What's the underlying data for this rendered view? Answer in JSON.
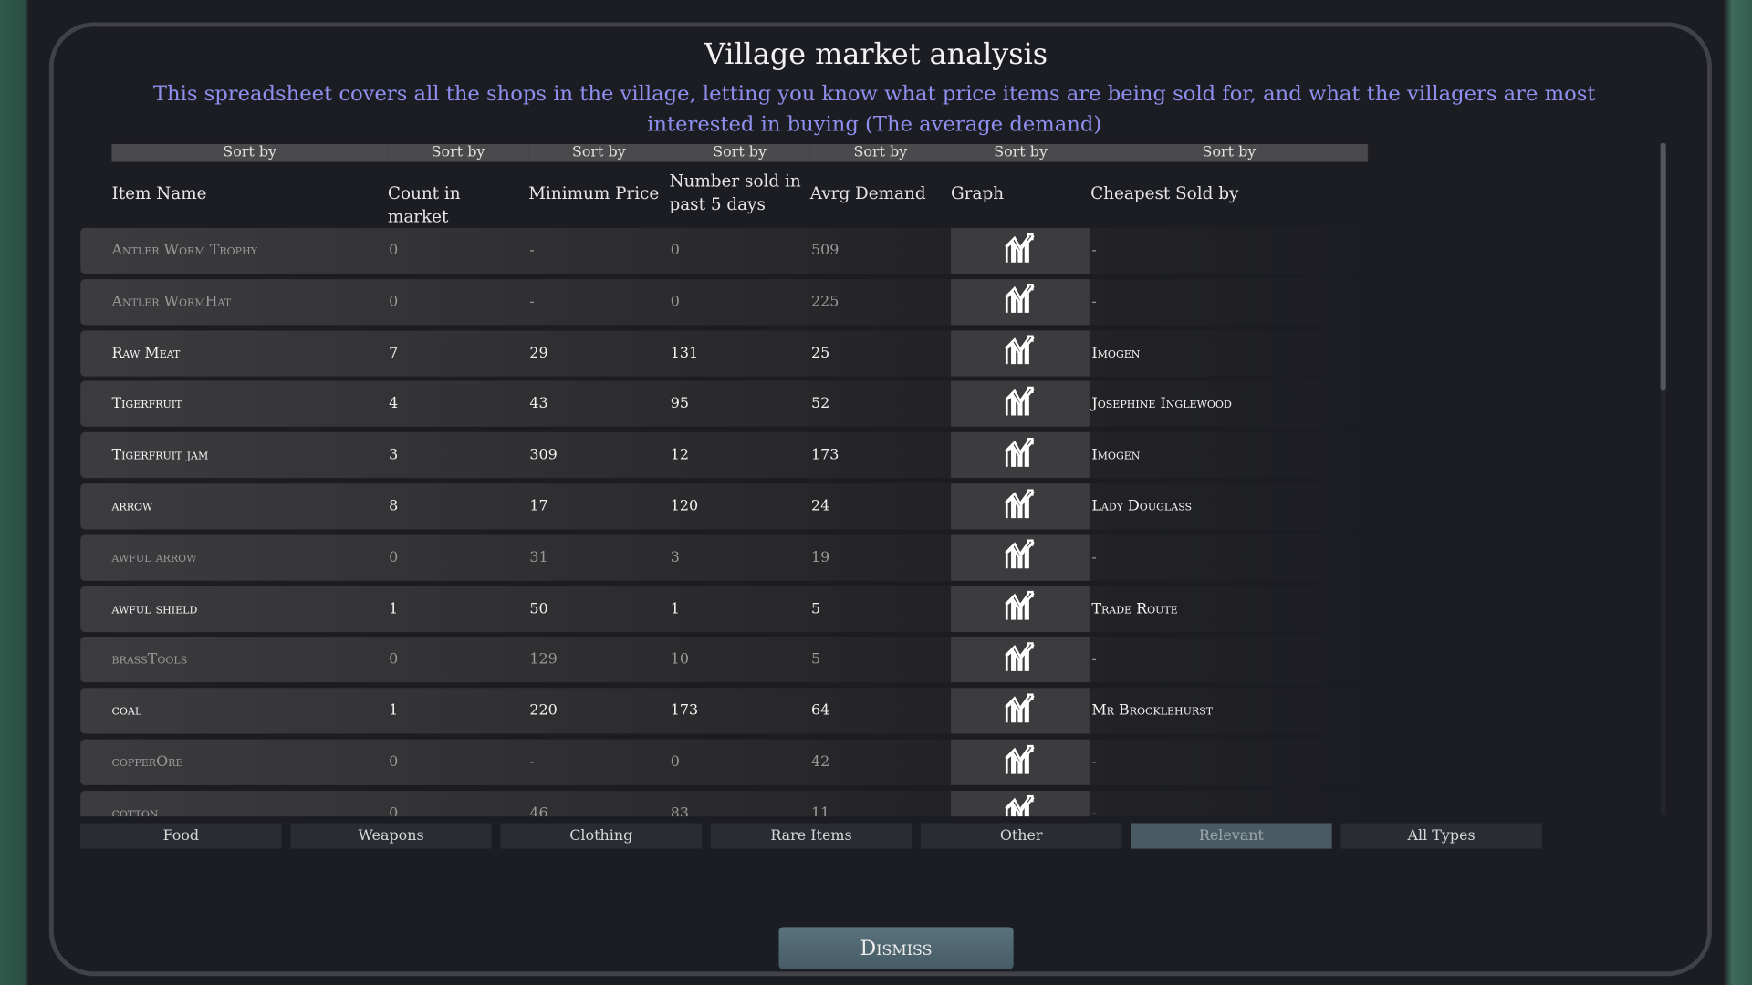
{
  "title": "Village market analysis",
  "subtitle": "This spreadsheet covers all the shops in the village, letting you know what price items are being sold for, and what the villagers are most interested in buying (The average demand)",
  "sort_label": "Sort by",
  "columns": [
    "Item Name",
    "Count in market",
    "Minimum Price",
    "Number sold in past 5 days",
    "Avrg Demand",
    "Graph",
    "Cheapest Sold by"
  ],
  "rows": [
    {
      "name": "Antler Worm Trophy",
      "count": "0",
      "min": "-",
      "sold": "0",
      "demand": "509",
      "seller": "-"
    },
    {
      "name": "Antler WormHat",
      "count": "0",
      "min": "-",
      "sold": "0",
      "demand": "225",
      "seller": "-"
    },
    {
      "name": "Raw Meat",
      "count": "7",
      "min": "29",
      "sold": "131",
      "demand": "25",
      "seller": "Imogen"
    },
    {
      "name": "Tigerfruit",
      "count": "4",
      "min": "43",
      "sold": "95",
      "demand": "52",
      "seller": "Josephine Inglewood"
    },
    {
      "name": "Tigerfruit jam",
      "count": "3",
      "min": "309",
      "sold": "12",
      "demand": "173",
      "seller": "Imogen"
    },
    {
      "name": "arrow",
      "count": "8",
      "min": "17",
      "sold": "120",
      "demand": "24",
      "seller": "Lady Douglass"
    },
    {
      "name": "awful arrow",
      "count": "0",
      "min": "31",
      "sold": "3",
      "demand": "19",
      "seller": "-"
    },
    {
      "name": "awful shield",
      "count": "1",
      "min": "50",
      "sold": "1",
      "demand": "5",
      "seller": "Trade Route"
    },
    {
      "name": "brassTools",
      "count": "0",
      "min": "129",
      "sold": "10",
      "demand": "5",
      "seller": "-"
    },
    {
      "name": "coal",
      "count": "1",
      "min": "220",
      "sold": "173",
      "demand": "64",
      "seller": "Mr Brocklehurst"
    },
    {
      "name": "copperOre",
      "count": "0",
      "min": "-",
      "sold": "0",
      "demand": "42",
      "seller": "-"
    },
    {
      "name": "cotton",
      "count": "0",
      "min": "46",
      "sold": "83",
      "demand": "11",
      "seller": "-"
    }
  ],
  "tabs": [
    {
      "label": "Food"
    },
    {
      "label": "Weapons"
    },
    {
      "label": "Clothing"
    },
    {
      "label": "Rare Items"
    },
    {
      "label": "Other"
    },
    {
      "label": "Relevant",
      "active": true
    },
    {
      "label": "All Types"
    }
  ],
  "dismiss": "Dismiss",
  "graph_icon": "bar-line-chart-icon",
  "colors": {
    "subtitle": "#8f8ff0",
    "active_tab": "#4a5a62",
    "dismiss": "#4f6770"
  }
}
